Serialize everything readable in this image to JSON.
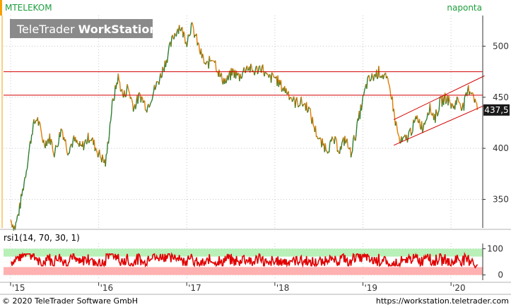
{
  "header": {
    "symbol": "MTELEKOM",
    "period": "naponta",
    "watermark_prefix": "TeleTrader ",
    "watermark_bold": "WorkStation"
  },
  "footer": {
    "copyright": "© 2020  TeleTrader Software GmbH",
    "url": "https://workstation.teletrader.com"
  },
  "colors": {
    "price_up": "#2e7d32",
    "price_down": "#e07b00",
    "line_red": "#d40000",
    "rsi_line": "#e00000",
    "rsi_overbought_band": "#b8f0b8",
    "rsi_oversold_band": "#ffb0b0",
    "accent_orange": "#f5a000",
    "label_green": "#1a9e3a"
  },
  "chart_data": [
    {
      "type": "line",
      "title": "MTELEKOM",
      "subtitle": "naponta",
      "x_tick_labels": [
        "'15",
        "'16",
        "'17",
        "'18",
        "'19",
        "'20"
      ],
      "y_ticks": [
        350,
        400,
        450,
        500
      ],
      "ylim": [
        322,
        530
      ],
      "last_value": 437.5,
      "last_value_label": "437,5",
      "grid": true,
      "anchors": [
        [
          2015.0,
          330
        ],
        [
          2015.05,
          322
        ],
        [
          2015.1,
          340
        ],
        [
          2015.18,
          380
        ],
        [
          2015.25,
          420
        ],
        [
          2015.3,
          430
        ],
        [
          2015.38,
          405
        ],
        [
          2015.45,
          410
        ],
        [
          2015.5,
          395
        ],
        [
          2015.58,
          420
        ],
        [
          2015.65,
          398
        ],
        [
          2015.72,
          408
        ],
        [
          2015.8,
          400
        ],
        [
          2015.9,
          412
        ],
        [
          2016.0,
          395
        ],
        [
          2016.08,
          385
        ],
        [
          2016.15,
          440
        ],
        [
          2016.22,
          470
        ],
        [
          2016.28,
          450
        ],
        [
          2016.33,
          460
        ],
        [
          2016.4,
          440
        ],
        [
          2016.47,
          452
        ],
        [
          2016.55,
          440
        ],
        [
          2016.62,
          455
        ],
        [
          2016.7,
          470
        ],
        [
          2016.78,
          490
        ],
        [
          2016.85,
          510
        ],
        [
          2016.92,
          520
        ],
        [
          2017.0,
          505
        ],
        [
          2017.05,
          520
        ],
        [
          2017.1,
          510
        ],
        [
          2017.15,
          495
        ],
        [
          2017.22,
          480
        ],
        [
          2017.3,
          490
        ],
        [
          2017.38,
          470
        ],
        [
          2017.45,
          465
        ],
        [
          2017.52,
          475
        ],
        [
          2017.6,
          470
        ],
        [
          2017.68,
          480
        ],
        [
          2017.76,
          475
        ],
        [
          2017.85,
          480
        ],
        [
          2017.92,
          468
        ],
        [
          2018.0,
          470
        ],
        [
          2018.08,
          460
        ],
        [
          2018.15,
          455
        ],
        [
          2018.22,
          445
        ],
        [
          2018.3,
          445
        ],
        [
          2018.38,
          440
        ],
        [
          2018.45,
          420
        ],
        [
          2018.52,
          405
        ],
        [
          2018.6,
          400
        ],
        [
          2018.67,
          408
        ],
        [
          2018.74,
          398
        ],
        [
          2018.8,
          410
        ],
        [
          2018.86,
          395
        ],
        [
          2018.92,
          415
        ],
        [
          2018.98,
          440
        ],
        [
          2019.05,
          465
        ],
        [
          2019.12,
          470
        ],
        [
          2019.18,
          475
        ],
        [
          2019.25,
          470
        ],
        [
          2019.32,
          455
        ],
        [
          2019.36,
          430
        ],
        [
          2019.42,
          405
        ],
        [
          2019.5,
          410
        ],
        [
          2019.56,
          420
        ],
        [
          2019.62,
          430
        ],
        [
          2019.68,
          420
        ],
        [
          2019.75,
          440
        ],
        [
          2019.82,
          430
        ],
        [
          2019.88,
          445
        ],
        [
          2019.95,
          450
        ],
        [
          2020.02,
          440
        ],
        [
          2020.08,
          448
        ],
        [
          2020.14,
          440
        ],
        [
          2020.2,
          458
        ],
        [
          2020.25,
          455
        ],
        [
          2020.3,
          437.5
        ]
      ],
      "horizontal_lines": [
        475,
        452
      ],
      "trend_channel": [
        {
          "from": [
            2019.35,
            403
          ],
          "to": [
            2020.38,
            442
          ]
        },
        {
          "from": [
            2019.35,
            428
          ],
          "to": [
            2020.38,
            471
          ]
        }
      ]
    },
    {
      "type": "line",
      "title": "rsi1(14, 70, 30, 1)",
      "y_ticks": [
        0,
        100
      ],
      "ylim": [
        -20,
        120
      ],
      "bands": [
        {
          "from": 70,
          "to": 100,
          "color": "rsi_overbought_band"
        },
        {
          "from": 0,
          "to": 30,
          "color": "rsi_oversold_band"
        }
      ],
      "approx_range": [
        35,
        80
      ]
    }
  ]
}
